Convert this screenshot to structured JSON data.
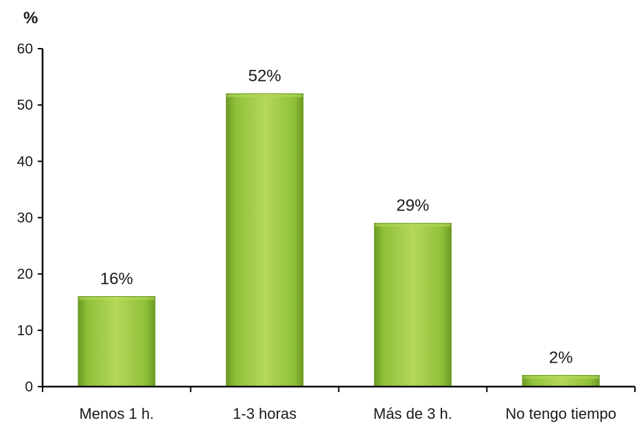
{
  "chart_data": {
    "type": "bar",
    "title": "",
    "xlabel": "",
    "ylabel": "%",
    "categories": [
      "Menos 1 h.",
      "1-3 horas",
      "Más de 3 h.",
      "No tengo tiempo"
    ],
    "values": [
      16,
      52,
      29,
      2
    ],
    "data_labels": [
      "16%",
      "52%",
      "29%",
      "2%"
    ],
    "ylim": [
      0,
      60
    ],
    "yticks": [
      0,
      10,
      20,
      30,
      40,
      50,
      60
    ],
    "grid": false,
    "legend": "none",
    "colors": {
      "bar_light": "#b5d85a",
      "bar_main": "#8fc03a",
      "bar_dark": "#6b9a22",
      "axis": "#000000",
      "text": "#1a1a1a"
    }
  }
}
